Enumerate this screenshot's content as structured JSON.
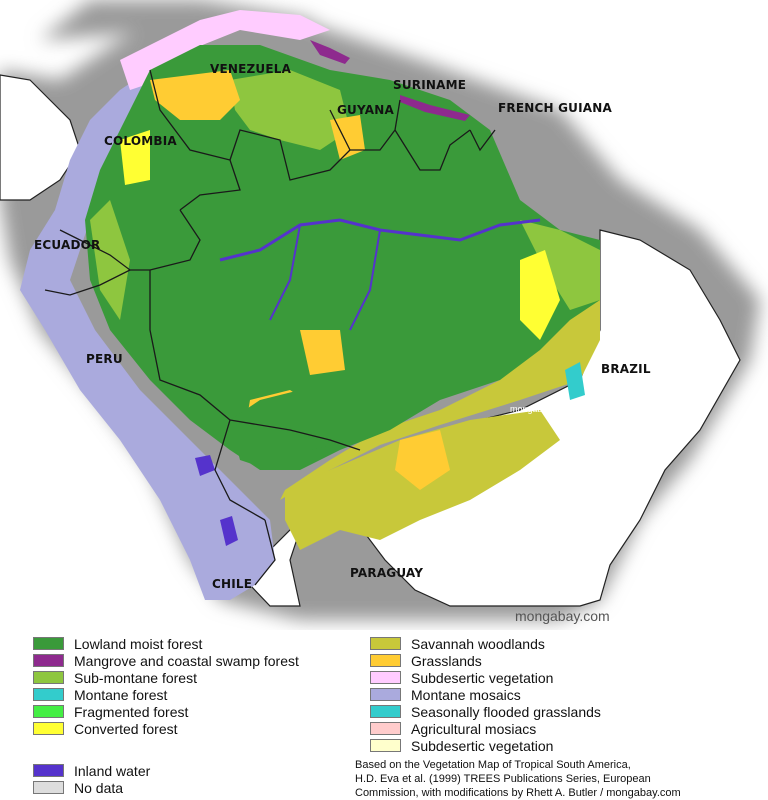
{
  "map": {
    "countries": [
      {
        "id": "venezuela",
        "label": "VENEZUELA"
      },
      {
        "id": "suriname",
        "label": "SURINAME"
      },
      {
        "id": "guyana",
        "label": "GUYANA"
      },
      {
        "id": "french-guiana",
        "label": "FRENCH GUIANA"
      },
      {
        "id": "colombia",
        "label": "COLOMBIA"
      },
      {
        "id": "ecuador",
        "label": "ECUADOR"
      },
      {
        "id": "peru",
        "label": "PERU"
      },
      {
        "id": "brazil",
        "label": "BRAZIL"
      },
      {
        "id": "chile",
        "label": "CHILE"
      },
      {
        "id": "paraguay",
        "label": "PARAGUAY"
      }
    ],
    "watermark_small": "mongabay.com",
    "watermark": "mongabay.com"
  },
  "legend": {
    "left": [
      {
        "label": "Lowland moist forest",
        "color": "#3a9a3a"
      },
      {
        "label": "Mangrove and coastal swamp forest",
        "color": "#8e2a8e"
      },
      {
        "label": "Sub-montane forest",
        "color": "#8ec63f"
      },
      {
        "label": "Montane forest",
        "color": "#33cccc"
      },
      {
        "label": "Fragmented forest",
        "color": "#44ee44"
      },
      {
        "label": "Converted forest",
        "color": "#ffff33"
      }
    ],
    "left_extra": [
      {
        "label": "Inland water",
        "color": "#5533cc"
      },
      {
        "label": "No data",
        "color": "#dddddd"
      }
    ],
    "right": [
      {
        "label": "Savannah woodlands",
        "color": "#c8c83a"
      },
      {
        "label": "Grasslands",
        "color": "#ffcc33"
      },
      {
        "label": "Subdesertic vegetation",
        "color": "#ffccff"
      },
      {
        "label": "Montane mosaics",
        "color": "#aaaadd"
      },
      {
        "label": "Seasonally flooded grasslands",
        "color": "#33cccc"
      },
      {
        "label": "Agricultural mosiacs",
        "color": "#ffcccc"
      },
      {
        "label": "Subdesertic vegetation",
        "color": "#ffffcc"
      }
    ]
  },
  "citation": [
    "Based on the Vegetation Map of Tropical South America,",
    "H.D. Eva et al. (1999) TREES Publications Series, European",
    "Commission, with modifications by Rhett A. Butler / mongabay.com"
  ]
}
